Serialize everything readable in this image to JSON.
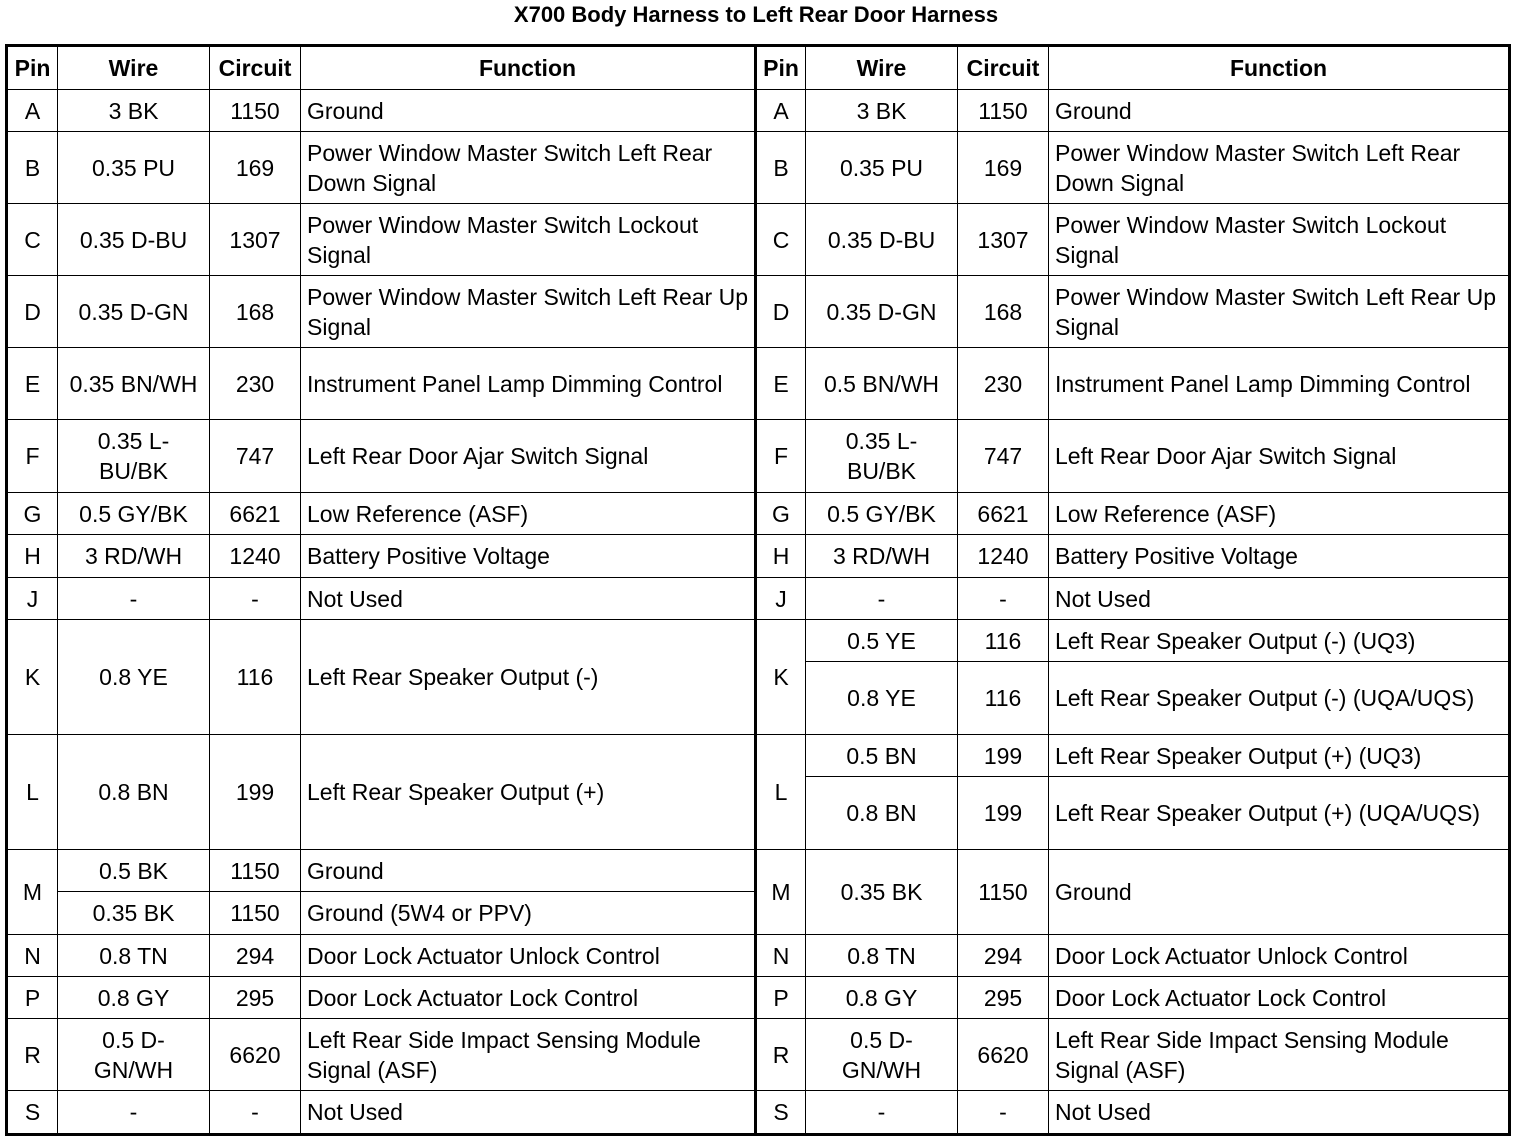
{
  "title": "X700 Body Harness to Left Rear Door Harness",
  "headers": [
    "Pin",
    "Wire",
    "Circuit",
    "Function"
  ],
  "rows": [
    {
      "pin": "A",
      "left": [
        {
          "wire": "3 BK",
          "circuit": "1150",
          "function": "Ground"
        }
      ],
      "right": [
        {
          "wire": "3 BK",
          "circuit": "1150",
          "function": "Ground"
        }
      ]
    },
    {
      "pin": "B",
      "left": [
        {
          "wire": "0.35 PU",
          "circuit": "169",
          "function": "Power Window Master Switch Left Rear Down Signal"
        }
      ],
      "right": [
        {
          "wire": "0.35 PU",
          "circuit": "169",
          "function": "Power Window Master Switch Left Rear Down Signal"
        }
      ]
    },
    {
      "pin": "C",
      "left": [
        {
          "wire": "0.35 D-BU",
          "circuit": "1307",
          "function": "Power Window Master Switch Lockout Signal"
        }
      ],
      "right": [
        {
          "wire": "0.35 D-BU",
          "circuit": "1307",
          "function": "Power Window Master Switch Lockout Signal"
        }
      ]
    },
    {
      "pin": "D",
      "left": [
        {
          "wire": "0.35 D-GN",
          "circuit": "168",
          "function": "Power Window Master Switch Left Rear Up Signal"
        }
      ],
      "right": [
        {
          "wire": "0.35 D-GN",
          "circuit": "168",
          "function": "Power Window Master Switch Left Rear Up Signal"
        }
      ]
    },
    {
      "pin": "E",
      "left": [
        {
          "wire": "0.35 BN/WH",
          "circuit": "230",
          "function": "Instrument Panel Lamp Dimming Control"
        }
      ],
      "right": [
        {
          "wire": "0.5 BN/WH",
          "circuit": "230",
          "function": "Instrument Panel Lamp Dimming Control"
        }
      ]
    },
    {
      "pin": "F",
      "left": [
        {
          "wire": "0.35 L-BU/BK",
          "circuit": "747",
          "function": "Left Rear Door Ajar Switch Signal"
        }
      ],
      "right": [
        {
          "wire": "0.35 L-BU/BK",
          "circuit": "747",
          "function": "Left Rear Door Ajar Switch Signal"
        }
      ]
    },
    {
      "pin": "G",
      "left": [
        {
          "wire": "0.5 GY/BK",
          "circuit": "6621",
          "function": "Low Reference (ASF)"
        }
      ],
      "right": [
        {
          "wire": "0.5 GY/BK",
          "circuit": "6621",
          "function": "Low Reference (ASF)"
        }
      ]
    },
    {
      "pin": "H",
      "left": [
        {
          "wire": "3 RD/WH",
          "circuit": "1240",
          "function": "Battery Positive Voltage"
        }
      ],
      "right": [
        {
          "wire": "3 RD/WH",
          "circuit": "1240",
          "function": "Battery Positive Voltage"
        }
      ]
    },
    {
      "pin": "J",
      "left": [
        {
          "wire": "-",
          "circuit": "-",
          "function": "Not Used"
        }
      ],
      "right": [
        {
          "wire": "-",
          "circuit": "-",
          "function": "Not Used"
        }
      ]
    },
    {
      "pin": "K",
      "left": [
        {
          "wire": "0.8 YE",
          "circuit": "116",
          "function": "Left Rear Speaker Output (-)"
        }
      ],
      "right": [
        {
          "wire": "0.5 YE",
          "circuit": "116",
          "function": "Left Rear Speaker Output (-) (UQ3)"
        },
        {
          "wire": "0.8 YE",
          "circuit": "116",
          "function": "Left Rear Speaker Output (-) (UQA/UQS)"
        }
      ]
    },
    {
      "pin": "L",
      "left": [
        {
          "wire": "0.8 BN",
          "circuit": "199",
          "function": "Left Rear Speaker Output (+)"
        }
      ],
      "right": [
        {
          "wire": "0.5 BN",
          "circuit": "199",
          "function": "Left Rear Speaker Output (+) (UQ3)"
        },
        {
          "wire": "0.8 BN",
          "circuit": "199",
          "function": "Left Rear Speaker Output (+) (UQA/UQS)"
        }
      ]
    },
    {
      "pin": "M",
      "left": [
        {
          "wire": "0.5 BK",
          "circuit": "1150",
          "function": "Ground"
        },
        {
          "wire": "0.35 BK",
          "circuit": "1150",
          "function": "Ground (5W4 or PPV)"
        }
      ],
      "right": [
        {
          "wire": "0.35 BK",
          "circuit": "1150",
          "function": "Ground"
        }
      ]
    },
    {
      "pin": "N",
      "left": [
        {
          "wire": "0.8 TN",
          "circuit": "294",
          "function": "Door Lock Actuator Unlock Control"
        }
      ],
      "right": [
        {
          "wire": "0.8 TN",
          "circuit": "294",
          "function": "Door Lock Actuator Unlock Control"
        }
      ]
    },
    {
      "pin": "P",
      "left": [
        {
          "wire": "0.8 GY",
          "circuit": "295",
          "function": "Door Lock Actuator Lock Control"
        }
      ],
      "right": [
        {
          "wire": "0.8 GY",
          "circuit": "295",
          "function": "Door Lock Actuator Lock Control"
        }
      ]
    },
    {
      "pin": "R",
      "left": [
        {
          "wire": "0.5 D-GN/WH",
          "circuit": "6620",
          "function": "Left Rear Side Impact Sensing Module Signal (ASF)"
        }
      ],
      "right": [
        {
          "wire": "0.5 D-GN/WH",
          "circuit": "6620",
          "function": "Left Rear Side Impact Sensing Module Signal (ASF)"
        }
      ]
    },
    {
      "pin": "S",
      "left": [
        {
          "wire": "-",
          "circuit": "-",
          "function": "Not Used"
        }
      ],
      "right": [
        {
          "wire": "-",
          "circuit": "-",
          "function": "Not Used"
        }
      ]
    }
  ]
}
